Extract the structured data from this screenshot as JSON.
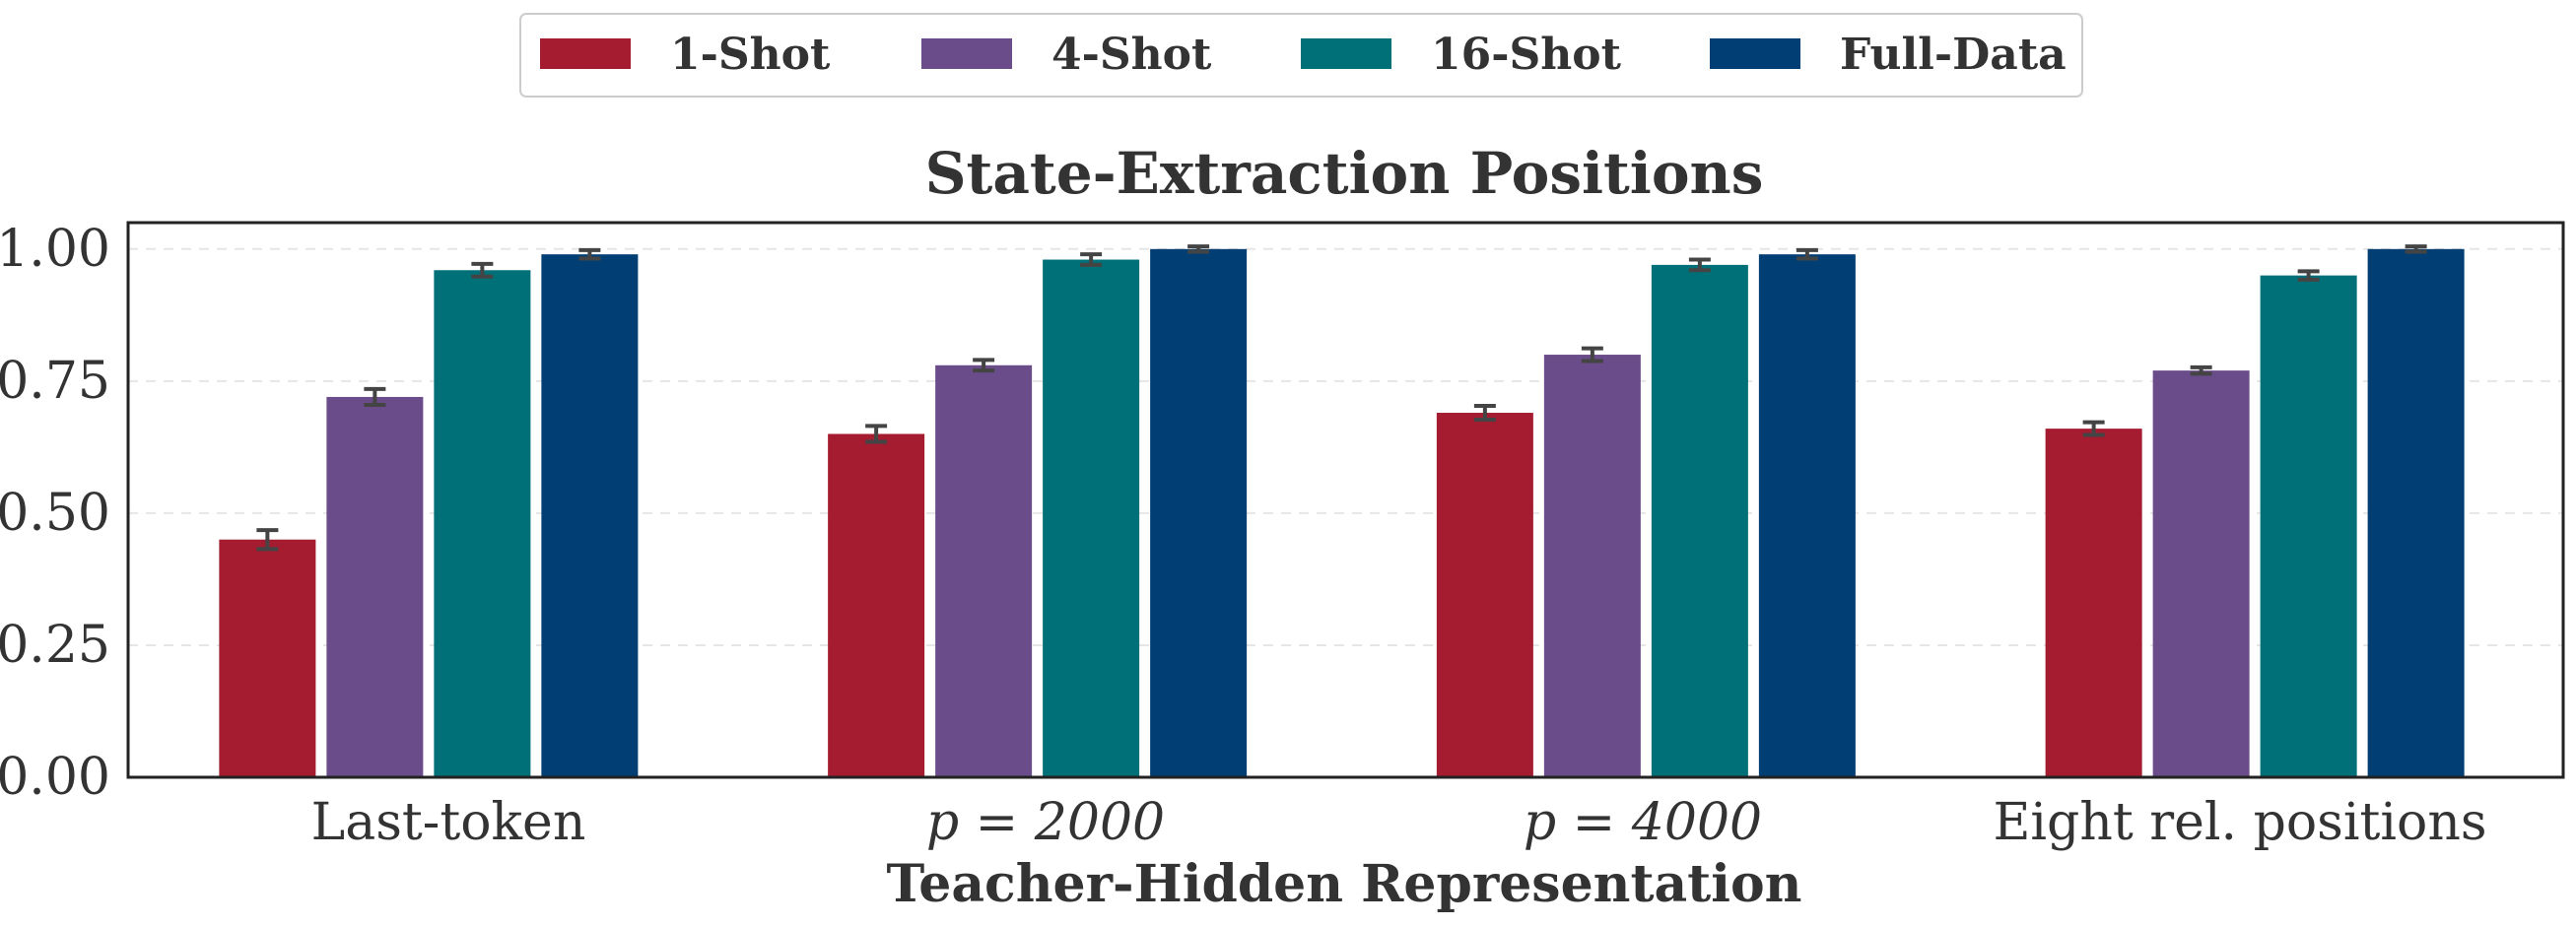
{
  "chart_data": {
    "type": "bar",
    "title": "State-Extraction Positions",
    "xlabel": "Teacher-Hidden Representation",
    "ylabel": "",
    "ylim": [
      0,
      1.05
    ],
    "yticks": [
      "0.00",
      "0.25",
      "0.50",
      "0.75",
      "1.00"
    ],
    "ytick_values": [
      0,
      0.25,
      0.5,
      0.75,
      1.0
    ],
    "categories": [
      "Last-token",
      "p = 2000",
      "p = 4000",
      "Eight rel. positions"
    ],
    "series": [
      {
        "name": "1-Shot",
        "color": "#a51c30",
        "values": [
          0.45,
          0.65,
          0.69,
          0.66
        ],
        "errors": [
          0.018,
          0.015,
          0.013,
          0.012
        ]
      },
      {
        "name": "4-Shot",
        "color": "#6b4c8a",
        "values": [
          0.72,
          0.78,
          0.8,
          0.77
        ],
        "errors": [
          0.015,
          0.01,
          0.012,
          0.006
        ]
      },
      {
        "name": "16-Shot",
        "color": "#007078",
        "values": [
          0.96,
          0.98,
          0.97,
          0.95
        ],
        "errors": [
          0.012,
          0.01,
          0.01,
          0.008
        ]
      },
      {
        "name": "Full-Data",
        "color": "#003e74",
        "values": [
          0.99,
          1.0,
          0.99,
          1.0
        ],
        "errors": [
          0.008,
          0.005,
          0.008,
          0.005
        ]
      }
    ],
    "grid": true,
    "legend_position": "top-center"
  }
}
